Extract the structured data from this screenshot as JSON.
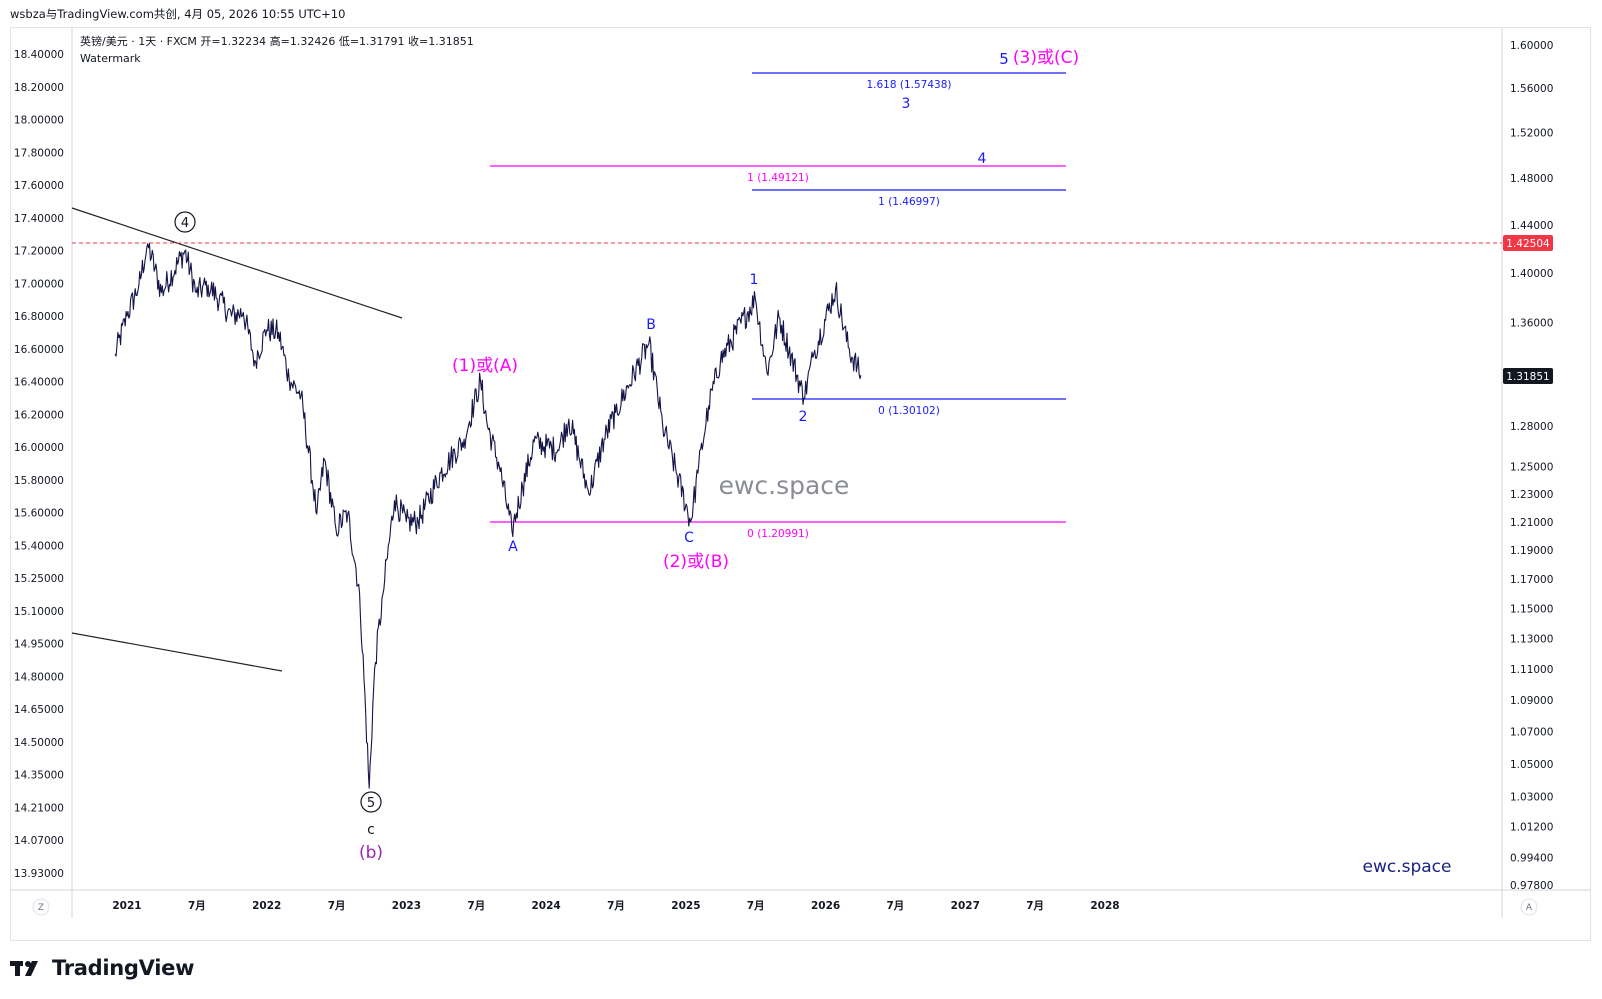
{
  "header": {
    "credit": "wsbza与TradingView.com共创, 4月 05, 2026 10:55 UTC+10"
  },
  "symbol_info": {
    "line": "英镑/美元 · 1天 · FXCM   开=1.32234   高=1.32426   低=1.31791   收=1.31851",
    "watermark_label": "Watermark"
  },
  "corner_buttons": {
    "left": "Z",
    "right": "A"
  },
  "footer": {
    "brand": "TradingView"
  },
  "colors": {
    "price_line": "#131348",
    "blue": "#1a1aff",
    "magenta": "#ff00ff",
    "purple": "#9c27b0",
    "red_dashed": "#f23645",
    "last_price_bg": "#131722",
    "grid_border": "#e0e3eb"
  },
  "chart_data": {
    "type": "line",
    "symbol": "英镑/美元",
    "interval": "1天",
    "exchange": "FXCM",
    "ohlc": {
      "open": 1.32234,
      "high": 1.32426,
      "low": 1.31791,
      "close": 1.31851
    },
    "x_tick_labels": [
      "2021",
      "7月",
      "2022",
      "7月",
      "2023",
      "7月",
      "2024",
      "7月",
      "2025",
      "7月",
      "2026",
      "7月",
      "2027",
      "7月",
      "2028"
    ],
    "left_axis_ticks": [
      "18.40000",
      "18.20000",
      "18.00000",
      "17.80000",
      "17.60000",
      "17.40000",
      "17.20000",
      "17.00000",
      "16.80000",
      "16.60000",
      "16.40000",
      "16.20000",
      "16.00000",
      "15.80000",
      "15.60000",
      "15.40000",
      "15.25000",
      "15.10000",
      "14.95000",
      "14.80000",
      "14.65000",
      "14.50000",
      "14.35000",
      "14.21000",
      "14.07000",
      "13.93000"
    ],
    "right_axis_ticks": [
      "1.60000",
      "1.56000",
      "1.52000",
      "1.48000",
      "1.44000",
      "1.40000",
      "1.36000",
      "1.32000",
      "1.28000",
      "1.25000",
      "1.23000",
      "1.21000",
      "1.19000",
      "1.17000",
      "1.15000",
      "1.13000",
      "1.11000",
      "1.09000",
      "1.07000",
      "1.05000",
      "1.03000",
      "1.01200",
      "0.99400",
      "0.97800"
    ],
    "right_axis_scale": "log",
    "right_axis_range": [
      0.978,
      1.6
    ],
    "price_series": [
      [
        "2020-12-01",
        1.335
      ],
      [
        "2021-01-01",
        1.365
      ],
      [
        "2021-02-01",
        1.39
      ],
      [
        "2021-02-24",
        1.4241
      ],
      [
        "2021-04-01",
        1.384
      ],
      [
        "2021-06-01",
        1.418
      ],
      [
        "2021-07-01",
        1.384
      ],
      [
        "2021-08-01",
        1.39
      ],
      [
        "2021-10-01",
        1.365
      ],
      [
        "2021-11-01",
        1.368
      ],
      [
        "2021-12-01",
        1.33
      ],
      [
        "2022-01-01",
        1.354
      ],
      [
        "2022-02-01",
        1.352
      ],
      [
        "2022-03-01",
        1.315
      ],
      [
        "2022-04-01",
        1.303
      ],
      [
        "2022-05-12",
        1.2155
      ],
      [
        "2022-06-01",
        1.255
      ],
      [
        "2022-07-01",
        1.205
      ],
      [
        "2022-08-01",
        1.216
      ],
      [
        "2022-09-01",
        1.16
      ],
      [
        "2022-09-26",
        1.0351
      ],
      [
        "2022-10-10",
        1.11
      ],
      [
        "2022-11-01",
        1.16
      ],
      [
        "2022-12-01",
        1.225
      ],
      [
        "2023-01-01",
        1.21
      ],
      [
        "2023-02-01",
        1.21
      ],
      [
        "2023-04-01",
        1.245
      ],
      [
        "2023-06-01",
        1.27
      ],
      [
        "2023-07-14",
        1.3142
      ],
      [
        "2023-08-01",
        1.28
      ],
      [
        "2023-09-01",
        1.25
      ],
      [
        "2023-10-04",
        1.2037
      ],
      [
        "2023-11-01",
        1.235
      ],
      [
        "2023-12-01",
        1.268
      ],
      [
        "2024-02-01",
        1.262
      ],
      [
        "2024-03-01",
        1.285
      ],
      [
        "2024-04-22",
        1.2299
      ],
      [
        "2024-06-01",
        1.27
      ],
      [
        "2024-07-01",
        1.29
      ],
      [
        "2024-09-26",
        1.3434
      ],
      [
        "2024-11-01",
        1.28
      ],
      [
        "2025-01-13",
        1.2099
      ],
      [
        "2025-02-01",
        1.245
      ],
      [
        "2025-03-01",
        1.295
      ],
      [
        "2025-04-01",
        1.33
      ],
      [
        "2025-07-01",
        1.3788
      ],
      [
        "2025-08-01",
        1.32
      ],
      [
        "2025-09-01",
        1.364
      ],
      [
        "2025-11-05",
        1.301
      ],
      [
        "2025-12-01",
        1.335
      ],
      [
        "2026-01-27",
        1.3868
      ],
      [
        "2026-03-01",
        1.34
      ],
      [
        "2026-04-03",
        1.31851
      ]
    ],
    "horizontal_levels": [
      {
        "label": "1.618 (1.57438)",
        "value": 1.57438,
        "color": "blue"
      },
      {
        "label": "1 (1.49121)",
        "value": 1.49121,
        "color": "magenta"
      },
      {
        "label": "1 (1.46997)",
        "value": 1.46997,
        "color": "blue"
      },
      {
        "label": "0 (1.30102)",
        "value": 1.30102,
        "color": "blue"
      },
      {
        "label": "0 (1.20991)",
        "value": 1.20991,
        "color": "magenta"
      }
    ],
    "dashed_level": {
      "value": 1.42504,
      "label": "1.42504"
    },
    "last_price": {
      "value": 1.31851,
      "label": "1.31851"
    },
    "wave_labels": {
      "circled_4": "4",
      "circled_5": "5",
      "c_label": "c",
      "b_label": "(b)",
      "wave_1_or_A": "(1)或(A)",
      "A": "A",
      "B": "B",
      "C": "C",
      "wave_2_or_B": "(2)或(B)",
      "w1": "1",
      "w2": "2",
      "w3": "3",
      "w4": "4",
      "w5": "5",
      "wave_3_or_C": "(3)或(C)"
    },
    "watermark_center": "ewc.space",
    "watermark_corner": "ewc.space"
  }
}
